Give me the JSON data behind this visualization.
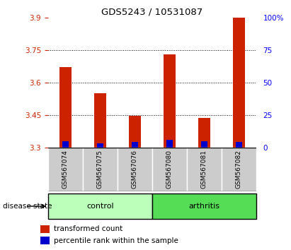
{
  "title": "GDS5243 / 10531087",
  "samples": [
    "GSM567074",
    "GSM567075",
    "GSM567076",
    "GSM567080",
    "GSM567081",
    "GSM567082"
  ],
  "transformed_counts": [
    3.67,
    3.55,
    3.445,
    3.73,
    3.435,
    3.9
  ],
  "percentile_ranks": [
    5,
    3,
    4,
    6,
    5,
    4
  ],
  "ymin": 3.3,
  "ymax": 3.9,
  "yticks": [
    3.3,
    3.45,
    3.6,
    3.75,
    3.9
  ],
  "ytick_labels": [
    "3.3",
    "3.45",
    "3.6",
    "3.75",
    "3.9"
  ],
  "y2ticks": [
    0,
    25,
    50,
    75,
    100
  ],
  "y2tick_labels": [
    "0",
    "25",
    "50",
    "75",
    "100%"
  ],
  "bar_color_red": "#cc2200",
  "bar_color_blue": "#0000cc",
  "grid_lines": [
    3.45,
    3.6,
    3.75
  ],
  "groups": [
    {
      "label": "control",
      "indices": [
        0,
        1,
        2
      ],
      "color": "#bbffbb"
    },
    {
      "label": "arthritis",
      "indices": [
        3,
        4,
        5
      ],
      "color": "#55dd55"
    }
  ],
  "group_label": "disease state",
  "legend_items": [
    {
      "label": "transformed count",
      "color": "#cc2200"
    },
    {
      "label": "percentile rank within the sample",
      "color": "#0000cc"
    }
  ],
  "label_bg_color": "#cccccc",
  "bar_width": 0.35,
  "blue_bar_width": 0.18
}
